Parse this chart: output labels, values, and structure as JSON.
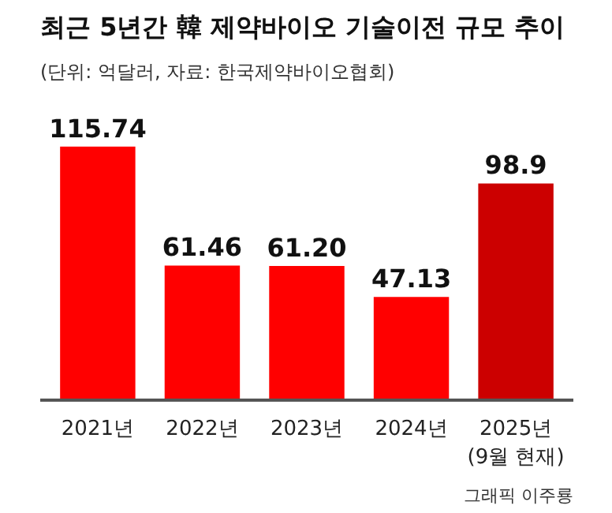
{
  "chart_data": {
    "type": "bar",
    "title": "최근 5년간 韓 제약바이오 기술이전 규모 추이",
    "subtitle": "(단위: 억달러, 자료: 한국제약바이오협회)",
    "categories": [
      "2021년",
      "2022년",
      "2023년",
      "2024년",
      "2025년\n(9월 현재)"
    ],
    "values": [
      115.74,
      61.46,
      61.2,
      47.13,
      98.9
    ],
    "value_labels": [
      "115.74",
      "61.46",
      "61.20",
      "47.13",
      "98.9"
    ],
    "colors": [
      "#ff0000",
      "#ff0000",
      "#ff0000",
      "#ff0000",
      "#cc0000"
    ],
    "annotations": [
      "그래픽 이주룡"
    ]
  }
}
